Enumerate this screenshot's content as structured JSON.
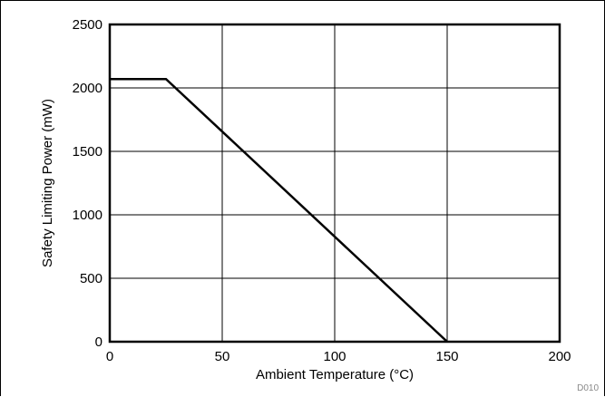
{
  "chart_data": {
    "type": "line",
    "title": "",
    "xlabel": "Ambient Temperature (°C)",
    "ylabel": "Safety Limiting Power (mW)",
    "xlim": [
      0,
      200
    ],
    "ylim": [
      0,
      2500
    ],
    "xticks": [
      0,
      50,
      100,
      150,
      200
    ],
    "yticks": [
      0,
      500,
      1000,
      1500,
      2000,
      2500
    ],
    "grid": true,
    "series": [
      {
        "x": [
          0,
          25,
          150
        ],
        "y": [
          2070,
          2070,
          0
        ],
        "color": "#000000"
      }
    ],
    "figure_code": "D010"
  }
}
